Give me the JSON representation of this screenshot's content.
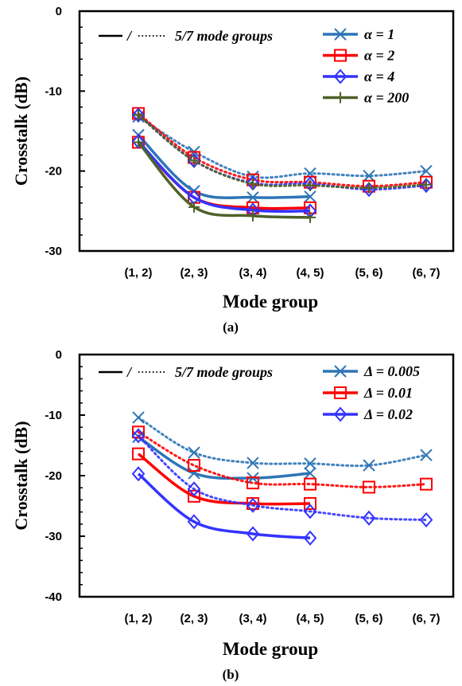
{
  "chart_data": [
    {
      "type": "line",
      "caption": "(a)",
      "xlabel": "Mode group",
      "ylabel": "Crosstalk (dB)",
      "categories": [
        "(1, 2)",
        "(2, 3)",
        "(3, 4)",
        "(4, 5)",
        "(5, 6)",
        "(6, 7)"
      ],
      "ylim": [
        -30,
        0
      ],
      "yticks": [
        "0",
        "-10",
        "-20",
        "-30"
      ],
      "style_note": "— / ······ 5/7 mode groups",
      "series": [
        {
          "name": "α = 1",
          "color": "#2e75b6",
          "marker": "x",
          "solid": [
            -15.5,
            -22.5,
            -23.3,
            -23.2
          ],
          "dotted": [
            -13.2,
            -17.6,
            -20.7,
            -20.3,
            -20.6,
            -20.0
          ]
        },
        {
          "name": "α = 2",
          "color": "#ff0000",
          "marker": "square",
          "solid": [
            -16.4,
            -23.3,
            -24.6,
            -24.6
          ],
          "dotted": [
            -12.8,
            -18.3,
            -21.1,
            -21.4,
            -21.9,
            -21.4
          ]
        },
        {
          "name": "α = 4",
          "color": "#3333ff",
          "marker": "diamond",
          "solid": [
            -16.3,
            -23.3,
            -24.9,
            -25.0
          ],
          "dotted": [
            -13.0,
            -18.7,
            -21.5,
            -21.6,
            -22.3,
            -21.8
          ]
        },
        {
          "name": "α = 200",
          "color": "#4f6228",
          "marker": "plus",
          "solid": [
            -16.4,
            -24.5,
            -25.6,
            -25.8
          ],
          "dotted": [
            -13.0,
            -18.7,
            -21.6,
            -21.8,
            -22.1,
            -21.7
          ]
        }
      ]
    },
    {
      "type": "line",
      "caption": "(b)",
      "xlabel": "Mode group",
      "ylabel": "Crosstalk (dB)",
      "categories": [
        "(1, 2)",
        "(2, 3)",
        "(3, 4)",
        "(4, 5)",
        "(5, 6)",
        "(6, 7)"
      ],
      "ylim": [
        -40,
        0
      ],
      "yticks": [
        "0",
        "-10",
        "-20",
        "-30",
        "-40"
      ],
      "style_note": "— / ······ 5/7 mode groups",
      "series": [
        {
          "name": "Δ = 0.005",
          "color": "#2e75b6",
          "marker": "x",
          "solid": [
            -13.6,
            -19.6,
            -20.4,
            -19.6
          ],
          "dotted": [
            -10.4,
            -16.2,
            -17.9,
            -18.0,
            -18.3,
            -16.6
          ]
        },
        {
          "name": "Δ = 0.01",
          "color": "#ff0000",
          "marker": "square",
          "solid": [
            -16.4,
            -23.4,
            -24.6,
            -24.6
          ],
          "dotted": [
            -12.8,
            -18.3,
            -21.2,
            -21.4,
            -21.9,
            -21.4
          ]
        },
        {
          "name": "Δ = 0.02",
          "color": "#3333ff",
          "marker": "diamond",
          "solid": [
            -19.7,
            -27.6,
            -29.6,
            -30.3
          ],
          "dotted": [
            -13.4,
            -22.2,
            -24.9,
            -25.9,
            -27.0,
            -27.3
          ]
        }
      ]
    }
  ]
}
